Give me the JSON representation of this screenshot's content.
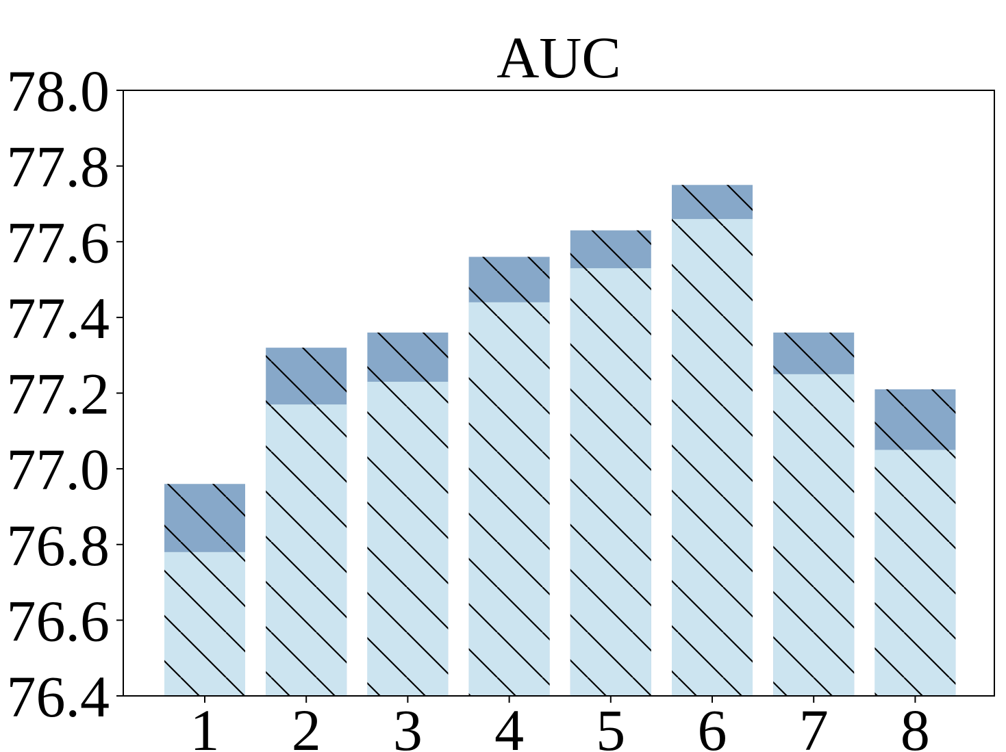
{
  "chart_data": {
    "type": "bar",
    "title": "AUC",
    "xlabel": "",
    "ylabel": "",
    "categories": [
      "1",
      "2",
      "3",
      "4",
      "5",
      "6",
      "7",
      "8"
    ],
    "series": [
      {
        "values": [
          76.78,
          77.17,
          77.23,
          77.44,
          77.53,
          77.66,
          77.25,
          77.05
        ],
        "color": "#cce4f0",
        "hatch": "\\\\"
      },
      {
        "values": [
          76.96,
          77.32,
          77.36,
          77.56,
          77.63,
          77.75,
          77.36,
          77.21
        ],
        "color": "#87a8c9",
        "hatch": "\\\\"
      }
    ],
    "stacked_overlay": true,
    "ylim": [
      76.4,
      78.0
    ],
    "yticks": [
      "76.4",
      "76.6",
      "76.8",
      "77.0",
      "77.2",
      "77.4",
      "77.6",
      "77.8",
      "78.0"
    ],
    "grid": false,
    "legend": "none"
  }
}
